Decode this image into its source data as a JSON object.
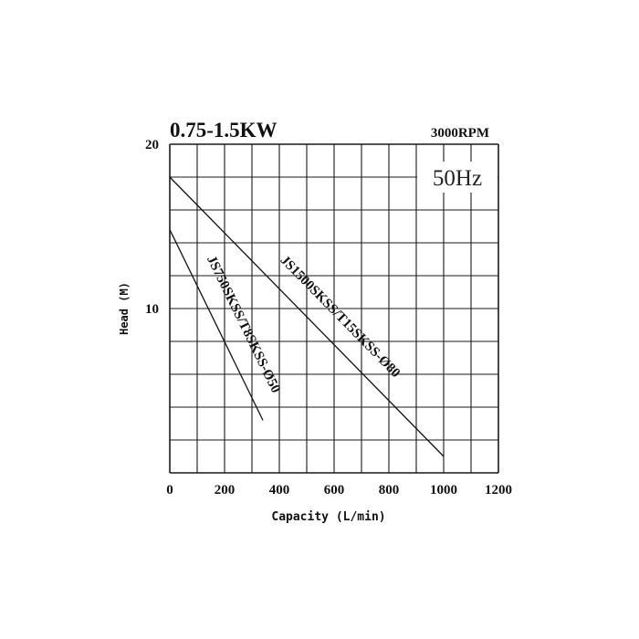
{
  "chart_data": {
    "type": "line",
    "title": "0.75-1.5KW",
    "speed_label": "3000RPM",
    "frequency_label": "50Hz",
    "xlabel": "Capacity (L/min)",
    "ylabel": "Head (M)",
    "xlim": [
      0,
      1200
    ],
    "ylim": [
      0,
      20
    ],
    "x_ticks": [
      "0",
      "200",
      "400",
      "600",
      "800",
      "1000",
      "1200"
    ],
    "y_ticks": [
      "20",
      "10"
    ],
    "grid": true,
    "series": [
      {
        "name": "JS750SKSS/T8SKSS-Ø50",
        "color": "#111111",
        "points": [
          [
            0,
            14.8
          ],
          [
            340,
            3.2
          ]
        ]
      },
      {
        "name": "JS1500SKSS/T15SKSS-Ø80",
        "color": "#111111",
        "points": [
          [
            0,
            18.0
          ],
          [
            1000,
            1.0
          ]
        ]
      }
    ]
  }
}
